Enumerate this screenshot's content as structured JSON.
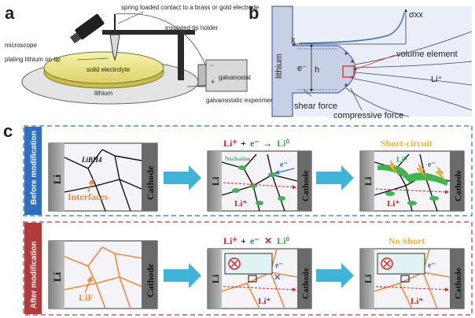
{
  "panel_a": {
    "letter": "a",
    "labels": {
      "microscope": "microscope",
      "spring_contact": "spring loaded contact to a brass or gold electrode",
      "insulated_tip_holder": "insulated tip holder",
      "plating": "plating lithium on tip",
      "solid_electrolyte": "solid electrolyte",
      "lithium": "lithium",
      "galvanostat": "galvanostat",
      "minus": "-",
      "plus": "+",
      "experiments": "galvanostatic experiments"
    }
  },
  "panel_b": {
    "letter": "b",
    "labels": {
      "sigma": "σxx",
      "x": "x",
      "volume_element": "volume element",
      "lithium": "lithium",
      "e_minus": "e⁻",
      "h": "h",
      "li_plus": "Li⁺",
      "shear_force": "shear force",
      "compressive_force": "compressive force"
    },
    "colors": {
      "background": "#e8edf8",
      "metal": "#c9d2e6",
      "curve": "#3b72b5",
      "box": "#e0382c"
    }
  },
  "panel_c": {
    "letter": "c",
    "before": {
      "side_label": "Before modification",
      "box1": {
        "li": "Li",
        "cathode": "Cathode",
        "libh4": "LiBH4",
        "interfaces": "Interfaces"
      },
      "box2": {
        "li": "Li",
        "cathode": "Cathode",
        "eq_li": "Li⁺",
        "eq_plus": "+",
        "eq_e": "e⁻",
        "eq_arrow": "→",
        "eq_li0": "Li⁰",
        "nucleation": "Nucleation",
        "e_minus": "e⁻",
        "li_plus": "Li⁺"
      },
      "box3": {
        "title": "Short-circuit",
        "li": "Li",
        "cathode": "Cathode",
        "li0": "Li⁰",
        "e_minus": "e⁻",
        "li_plus": "Li⁺"
      }
    },
    "after": {
      "side_label": "After modification",
      "box1": {
        "li": "Li",
        "cathode": "Cathode",
        "lif": "LiF"
      },
      "box2": {
        "li": "Li",
        "cathode": "Cathode",
        "eq_li": "Li⁺",
        "eq_plus": "+",
        "eq_e": "e⁻",
        "eq_cross": "✕",
        "eq_li0": "Li⁰",
        "e_minus": "e⁻",
        "li_plus": "Li⁺"
      },
      "box3": {
        "title": "No Short",
        "li": "Li",
        "cathode": "Cathode",
        "e_minus": "e⁻",
        "li_plus": "Li⁺"
      }
    },
    "colors": {
      "before_frame": "#2d6fc4",
      "after_frame": "#c0393c",
      "side_before": "#2d6fc4",
      "side_after": "#b13a3a",
      "lif_orange": "#f08a3c",
      "li0_green": "#3fb552",
      "electron_blue": "#2f6fd0",
      "li_red": "#d8262a",
      "arrow_cyan": "#3fb4d6",
      "short_yellow": "#f2b623"
    }
  }
}
